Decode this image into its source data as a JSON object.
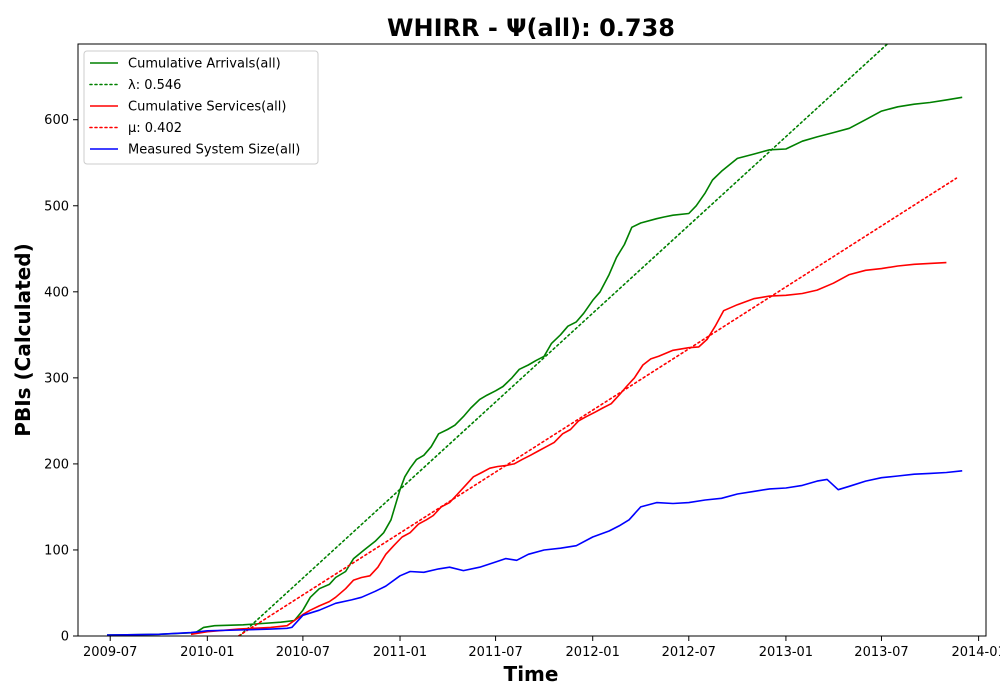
{
  "chart_data": {
    "type": "line",
    "title": "WHIRR -  Ψ(all): 0.738",
    "xlabel": "Time",
    "ylabel": "PBIs (Calculated)",
    "x_ticks": [
      "2009-07",
      "2010-01",
      "2010-07",
      "2011-01",
      "2011-07",
      "2012-01",
      "2012-07",
      "2013-01",
      "2013-07",
      "2014-01"
    ],
    "y_ticks": [
      "0",
      "100",
      "200",
      "300",
      "400",
      "500",
      "600"
    ],
    "xlim": [
      "2009-05-01",
      "2014-01-15"
    ],
    "ylim": [
      0,
      688
    ],
    "grid": false,
    "legend_position": "top-left",
    "series": [
      {
        "name": "Cumulative Arrivals(all)",
        "color": "#008000",
        "style": "solid",
        "x": [
          "2009-06-25",
          "2009-10-01",
          "2009-12-10",
          "2009-12-25",
          "2010-01-15",
          "2010-03-10",
          "2010-04-01",
          "2010-05-20",
          "2010-06-01",
          "2010-06-15",
          "2010-07-01",
          "2010-07-15",
          "2010-08-01",
          "2010-08-20",
          "2010-09-01",
          "2010-09-20",
          "2010-10-05",
          "2010-10-25",
          "2010-11-15",
          "2010-12-01",
          "2010-12-15",
          "2011-01-01",
          "2011-01-10",
          "2011-01-20",
          "2011-02-01",
          "2011-02-15",
          "2011-03-01",
          "2011-03-15",
          "2011-04-01",
          "2011-04-15",
          "2011-05-01",
          "2011-05-15",
          "2011-06-01",
          "2011-06-15",
          "2011-07-01",
          "2011-07-15",
          "2011-08-01",
          "2011-08-15",
          "2011-09-01",
          "2011-09-15",
          "2011-10-01",
          "2011-10-15",
          "2011-11-01",
          "2011-11-15",
          "2011-12-01",
          "2011-12-15",
          "2012-01-01",
          "2012-01-15",
          "2012-02-01",
          "2012-02-15",
          "2012-03-01",
          "2012-03-15",
          "2012-04-01",
          "2012-05-01",
          "2012-05-15",
          "2012-06-01",
          "2012-07-01",
          "2012-07-15",
          "2012-08-01",
          "2012-08-15",
          "2012-09-01",
          "2012-10-01",
          "2012-11-01",
          "2012-12-01",
          "2013-01-01",
          "2013-02-01",
          "2013-03-01",
          "2013-04-01",
          "2013-05-01",
          "2013-06-01",
          "2013-07-01",
          "2013-08-01",
          "2013-09-01",
          "2013-10-01",
          "2013-11-01",
          "2013-12-01"
        ],
        "values": [
          1,
          2,
          4,
          10,
          12,
          13,
          14,
          16,
          17,
          18,
          30,
          45,
          55,
          60,
          68,
          75,
          90,
          100,
          110,
          120,
          135,
          170,
          185,
          195,
          205,
          210,
          220,
          235,
          240,
          245,
          255,
          265,
          275,
          280,
          285,
          290,
          300,
          310,
          315,
          320,
          325,
          340,
          350,
          360,
          365,
          375,
          390,
          400,
          420,
          440,
          455,
          475,
          480,
          485,
          487,
          489,
          491,
          500,
          515,
          530,
          540,
          555,
          560,
          565,
          566,
          575,
          580,
          585,
          590,
          600,
          610,
          615,
          618,
          620,
          623,
          626
        ]
      },
      {
        "name": "λ: 0.546",
        "color": "#008000",
        "style": "dotted",
        "x": [
          "2010-03-03",
          "2013-07-12"
        ],
        "values": [
          0,
          688
        ]
      },
      {
        "name": "Cumulative Services(all)",
        "color": "#ff0000",
        "style": "solid",
        "x": [
          "2009-12-01",
          "2010-01-01",
          "2010-03-01",
          "2010-05-01",
          "2010-06-01",
          "2010-06-15",
          "2010-07-01",
          "2010-07-15",
          "2010-08-01",
          "2010-08-20",
          "2010-09-01",
          "2010-09-20",
          "2010-10-05",
          "2010-10-20",
          "2010-11-05",
          "2010-11-20",
          "2010-12-05",
          "2010-12-20",
          "2011-01-05",
          "2011-01-20",
          "2011-02-05",
          "2011-02-20",
          "2011-03-05",
          "2011-03-20",
          "2011-04-05",
          "2011-04-20",
          "2011-05-05",
          "2011-05-20",
          "2011-06-05",
          "2011-06-20",
          "2011-07-05",
          "2011-07-20",
          "2011-08-05",
          "2011-08-20",
          "2011-09-05",
          "2011-09-20",
          "2011-10-05",
          "2011-10-20",
          "2011-11-05",
          "2011-11-20",
          "2011-12-05",
          "2011-12-20",
          "2012-01-05",
          "2012-01-20",
          "2012-02-05",
          "2012-02-20",
          "2012-03-05",
          "2012-03-20",
          "2012-04-05",
          "2012-04-20",
          "2012-05-05",
          "2012-06-01",
          "2012-07-01",
          "2012-07-20",
          "2012-08-05",
          "2012-08-20",
          "2012-09-05",
          "2012-10-01",
          "2012-11-01",
          "2012-12-01",
          "2013-01-01",
          "2013-02-01",
          "2013-03-01",
          "2013-04-01",
          "2013-05-01",
          "2013-06-01",
          "2013-07-01",
          "2013-08-01",
          "2013-09-01",
          "2013-10-01",
          "2013-11-01"
        ],
        "values": [
          2,
          5,
          8,
          10,
          12,
          18,
          25,
          30,
          35,
          40,
          45,
          55,
          65,
          68,
          70,
          80,
          95,
          105,
          115,
          120,
          130,
          135,
          140,
          150,
          155,
          165,
          175,
          185,
          190,
          195,
          197,
          198,
          200,
          205,
          210,
          215,
          220,
          225,
          235,
          240,
          250,
          255,
          260,
          265,
          270,
          280,
          290,
          300,
          315,
          322,
          325,
          332,
          335,
          336,
          345,
          360,
          378,
          385,
          392,
          395,
          396,
          398,
          402,
          410,
          420,
          425,
          427,
          430,
          432,
          433,
          434
        ]
      },
      {
        "name": "μ: 0.402",
        "color": "#ff0000",
        "style": "dotted",
        "x": [
          "2010-03-01",
          "2013-11-20"
        ],
        "values": [
          0,
          532
        ]
      },
      {
        "name": "Measured System Size(all)",
        "color": "#0000ff",
        "style": "solid",
        "x": [
          "2009-06-25",
          "2009-10-01",
          "2009-12-01",
          "2010-01-01",
          "2010-03-01",
          "2010-05-01",
          "2010-06-01",
          "2010-06-10",
          "2010-07-01",
          "2010-08-01",
          "2010-09-01",
          "2010-10-01",
          "2010-10-20",
          "2010-11-15",
          "2010-12-05",
          "2011-01-01",
          "2011-01-20",
          "2011-02-15",
          "2011-03-15",
          "2011-04-05",
          "2011-05-01",
          "2011-06-01",
          "2011-07-01",
          "2011-07-20",
          "2011-08-10",
          "2011-09-01",
          "2011-10-01",
          "2011-11-01",
          "2011-12-01",
          "2012-01-01",
          "2012-02-01",
          "2012-02-20",
          "2012-03-10",
          "2012-04-01",
          "2012-05-01",
          "2012-06-01",
          "2012-07-01",
          "2012-08-01",
          "2012-09-01",
          "2012-10-01",
          "2012-11-01",
          "2012-12-01",
          "2013-01-01",
          "2013-02-01",
          "2013-03-01",
          "2013-03-20",
          "2013-04-10",
          "2013-05-01",
          "2013-06-01",
          "2013-07-01",
          "2013-08-01",
          "2013-09-01",
          "2013-10-01",
          "2013-11-01",
          "2013-12-01"
        ],
        "values": [
          1,
          2,
          4,
          6,
          7,
          8,
          9,
          10,
          24,
          30,
          38,
          42,
          45,
          52,
          58,
          70,
          75,
          74,
          78,
          80,
          76,
          80,
          86,
          90,
          88,
          95,
          100,
          102,
          105,
          115,
          122,
          128,
          135,
          150,
          155,
          154,
          155,
          158,
          160,
          165,
          168,
          171,
          172,
          175,
          180,
          182,
          170,
          174,
          180,
          184,
          186,
          188,
          189,
          190,
          192
        ]
      }
    ]
  }
}
